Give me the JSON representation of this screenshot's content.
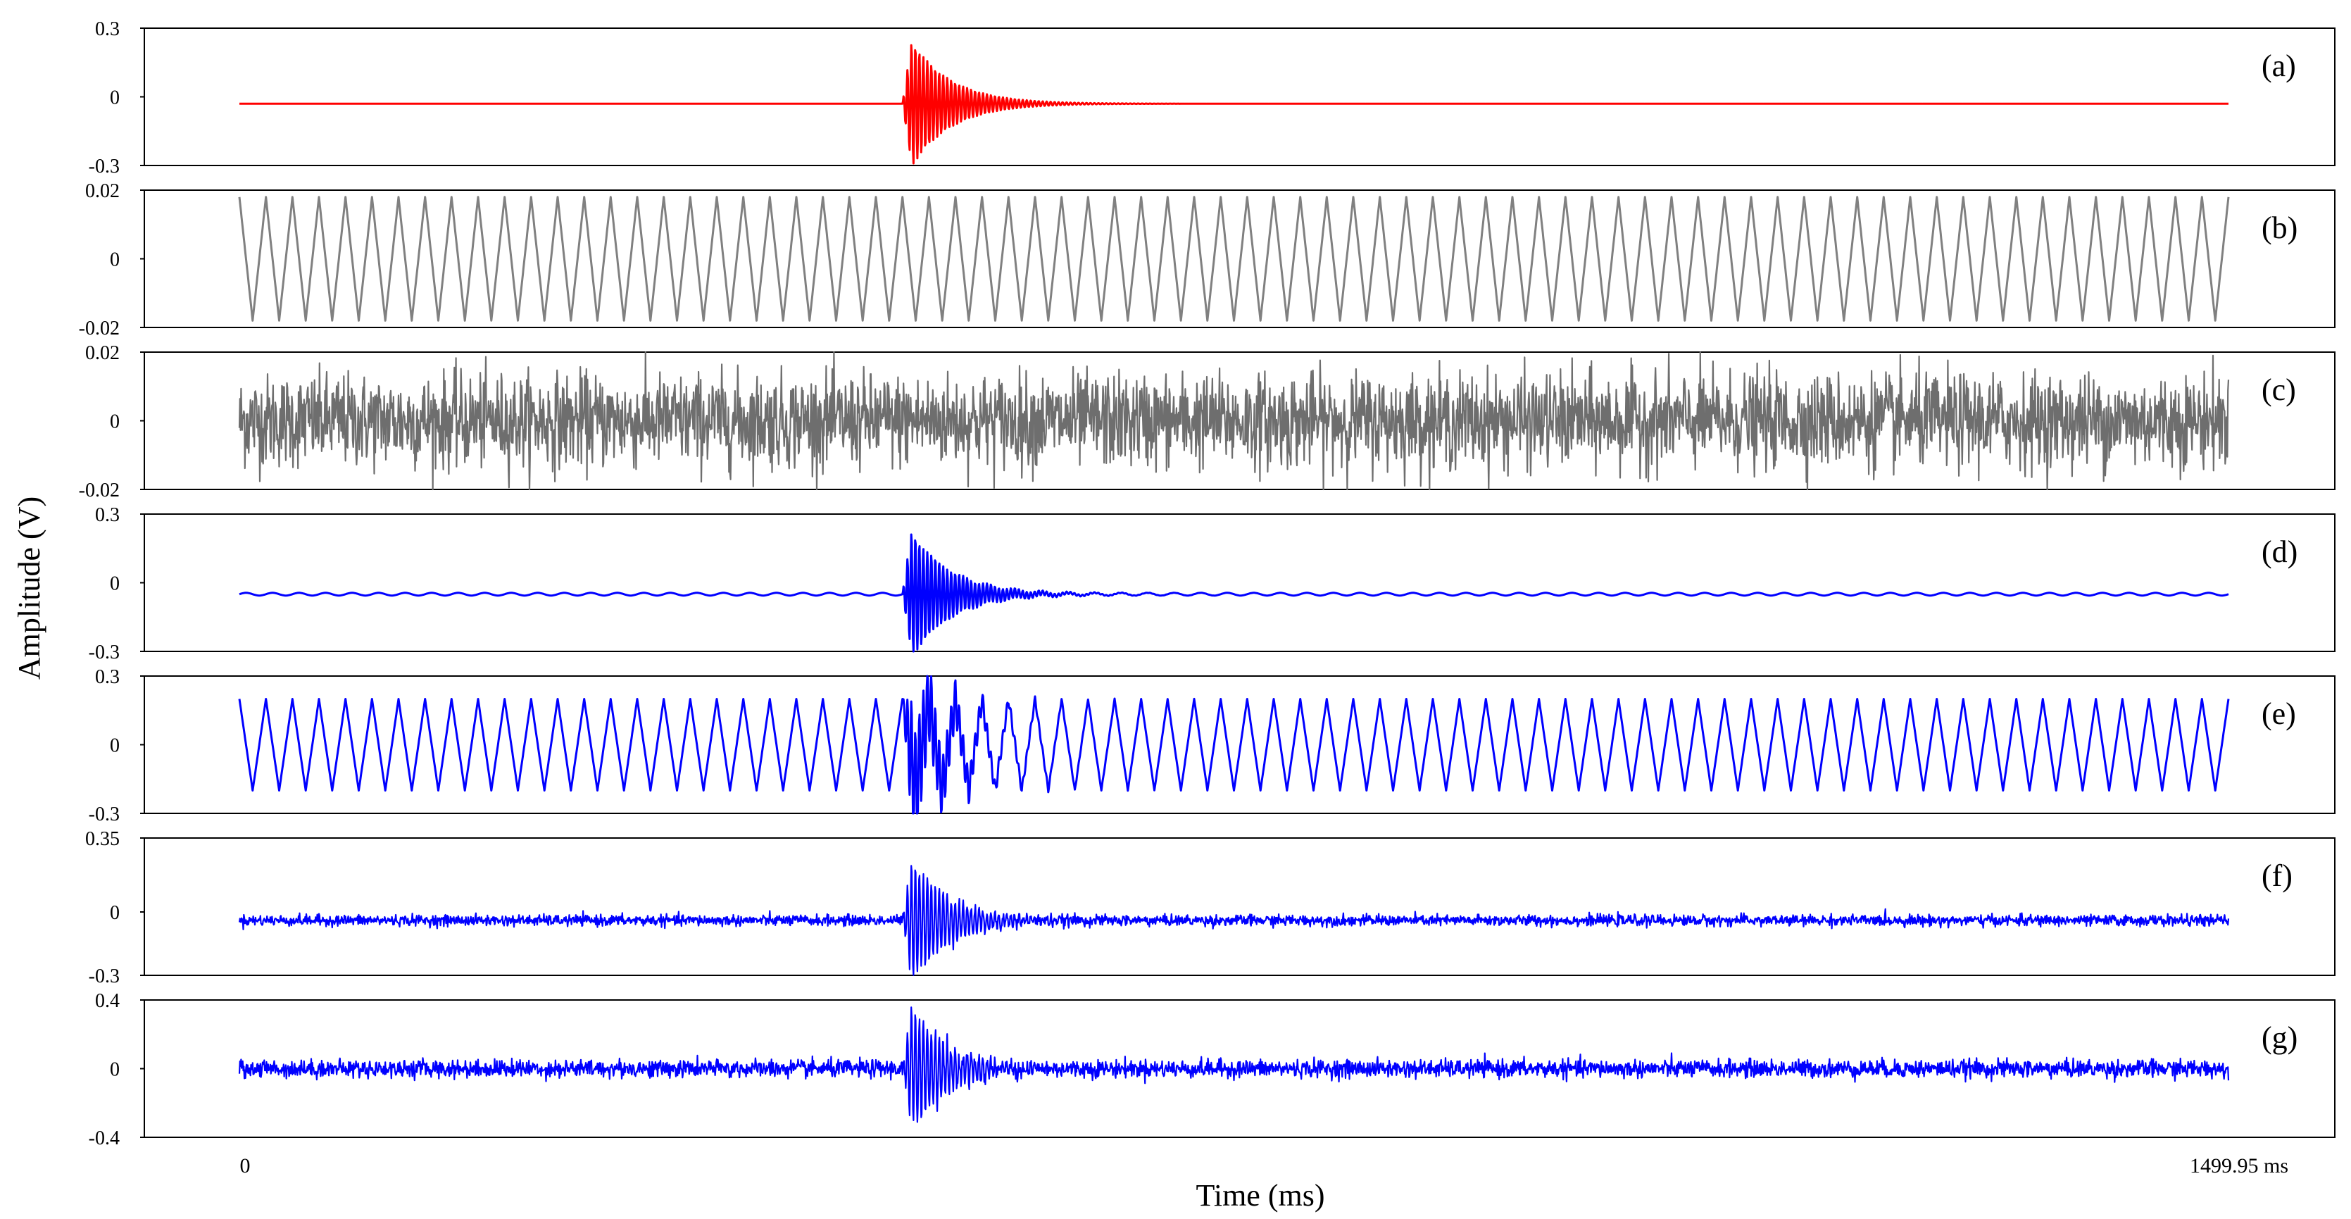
{
  "figure": {
    "ylabel": "Amplitude (V)",
    "xlabel": "Time (ms)",
    "x_tick_start": "0",
    "x_tick_end": "1499.95 ms"
  },
  "chart_data": [
    {
      "type": "line",
      "panel_label": "(a)",
      "signal": "burst",
      "color": "#ff0000",
      "x_range": [
        0,
        1499.95
      ],
      "ylim": [
        -0.3,
        0.3
      ],
      "y_ticks": [
        "0.3",
        "0",
        "-0.3"
      ],
      "baseline": -0.03,
      "burst_peak_time": 507,
      "burst_peak": 0.28,
      "burst_min": -0.27,
      "noise_amplitude": 0,
      "sine_amplitude": 0,
      "sine_cycles": 0,
      "triangle_amplitude": 0,
      "triangle_cycles": 0
    },
    {
      "type": "line",
      "panel_label": "(b)",
      "signal": "triangle",
      "color": "#808080",
      "x_range": [
        0,
        1499.95
      ],
      "ylim": [
        -0.02,
        0.02
      ],
      "y_ticks": [
        "0.02",
        "0",
        "-0.02"
      ],
      "baseline": 0,
      "burst_peak_time": 0,
      "burst_peak": 0,
      "burst_min": 0,
      "noise_amplitude": 0,
      "sine_amplitude": 0,
      "sine_cycles": 0,
      "triangle_amplitude": 0.018,
      "triangle_cycles": 75
    },
    {
      "type": "line",
      "panel_label": "(c)",
      "signal": "noise",
      "color": "#6e6e6e",
      "x_range": [
        0,
        1499.95
      ],
      "ylim": [
        -0.02,
        0.02
      ],
      "y_ticks": [
        "0.02",
        "0",
        "-0.02"
      ],
      "baseline": 0,
      "burst_peak_time": 0,
      "burst_peak": 0,
      "burst_min": 0,
      "noise_amplitude": 0.016,
      "sine_amplitude": 0,
      "sine_cycles": 0,
      "triangle_amplitude": 0,
      "triangle_cycles": 0
    },
    {
      "type": "line",
      "panel_label": "(d)",
      "signal": "burst+sine",
      "color": "#0000ff",
      "x_range": [
        0,
        1499.95
      ],
      "ylim": [
        -0.3,
        0.3
      ],
      "y_ticks": [
        "0.3",
        "0",
        "-0.3"
      ],
      "baseline": -0.05,
      "burst_peak_time": 507,
      "burst_peak": 0.28,
      "burst_min": -0.27,
      "noise_amplitude": 0,
      "sine_amplitude": 0.006,
      "sine_cycles": 75,
      "triangle_amplitude": 0,
      "triangle_cycles": 0
    },
    {
      "type": "line",
      "panel_label": "(e)",
      "signal": "burst+triangle",
      "color": "#0000ff",
      "x_range": [
        0,
        1499.95
      ],
      "ylim": [
        -0.3,
        0.3
      ],
      "y_ticks": [
        "0.3",
        "0",
        "-0.3"
      ],
      "baseline": 0,
      "burst_peak_time": 507,
      "burst_peak": 0.27,
      "burst_min": -0.28,
      "noise_amplitude": 0,
      "sine_amplitude": 0,
      "sine_cycles": 0,
      "triangle_amplitude": 0.2,
      "triangle_cycles": 75
    },
    {
      "type": "line",
      "panel_label": "(f)",
      "signal": "burst+noise",
      "color": "#0000ff",
      "x_range": [
        0,
        1499.95
      ],
      "ylim": [
        -0.3,
        0.35
      ],
      "y_ticks": [
        "0.35",
        "0",
        "-0.3"
      ],
      "baseline": -0.04,
      "burst_peak_time": 507,
      "burst_peak": 0.3,
      "burst_min": -0.27,
      "noise_amplitude": 0.03,
      "sine_amplitude": 0,
      "sine_cycles": 0,
      "triangle_amplitude": 0,
      "triangle_cycles": 0
    },
    {
      "type": "line",
      "panel_label": "(g)",
      "signal": "burst+noise",
      "color": "#0000ff",
      "x_range": [
        0,
        1499.95
      ],
      "ylim": [
        -0.4,
        0.4
      ],
      "y_ticks": [
        "0.4",
        "0",
        "-0.4"
      ],
      "baseline": 0,
      "burst_peak_time": 507,
      "burst_peak": 0.38,
      "burst_min": -0.33,
      "noise_amplitude": 0.06,
      "sine_amplitude": 0,
      "sine_cycles": 0,
      "triangle_amplitude": 0,
      "triangle_cycles": 0
    }
  ]
}
